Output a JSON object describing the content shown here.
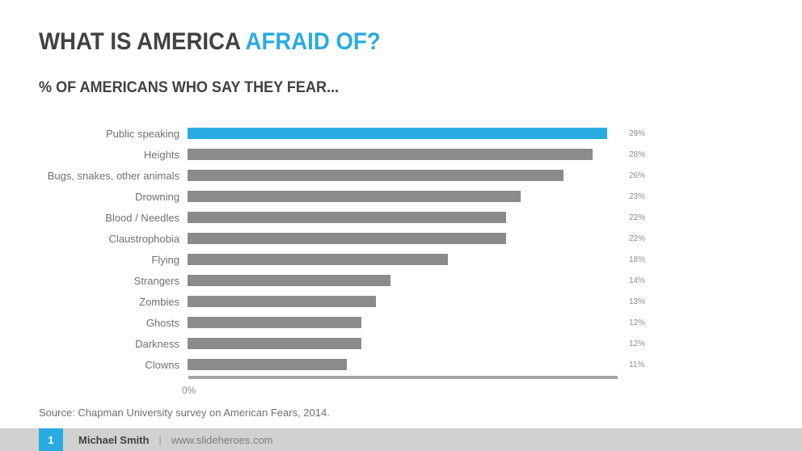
{
  "slide": {
    "title": {
      "part1": "WHAT IS AMERICA ",
      "part2": "AFRAID OF?"
    },
    "subtitle": "% OF AMERICANS WHO SAY THEY FEAR...",
    "source": "Source: Chapman University survey on American Fears, 2014.",
    "footer": {
      "page_number": "1",
      "author": "Michael Smith",
      "separator": "|",
      "website": "www.slideheroes.com"
    }
  },
  "colors": {
    "accent_blue": "#29ABE2",
    "title_dark": "#414042",
    "bar_gray": "#8B8B8B",
    "axis_gray": "#A5A5A5",
    "label_gray": "#707070",
    "value_gray": "#8C8C8C",
    "footer_bg": "#D1D1D1",
    "footer_link": "#7C7C7C"
  },
  "chart_data": {
    "type": "bar",
    "orientation": "horizontal",
    "title": "% OF AMERICANS WHO SAY THEY FEAR...",
    "categories": [
      "Public speaking",
      "Heights",
      "Bugs, snakes, other animals",
      "Drowning",
      "Blood / Needles",
      "Claustrophobia",
      "Flying",
      "Strangers",
      "Zombies",
      "Ghosts",
      "Darkness",
      "Clowns"
    ],
    "values": [
      29,
      28,
      26,
      23,
      22,
      22,
      18,
      14,
      13,
      12,
      12,
      11
    ],
    "value_labels": [
      "29%",
      "28%",
      "26%",
      "23%",
      "22%",
      "22%",
      "18%",
      "14%",
      "13%",
      "12%",
      "12%",
      "11%"
    ],
    "highlight_index": 0,
    "xlabel": "",
    "ylabel": "",
    "xlim": [
      0,
      30
    ],
    "axis_zero_label": "0%",
    "grid": false,
    "legend": false,
    "data_labels": "outside-end"
  }
}
